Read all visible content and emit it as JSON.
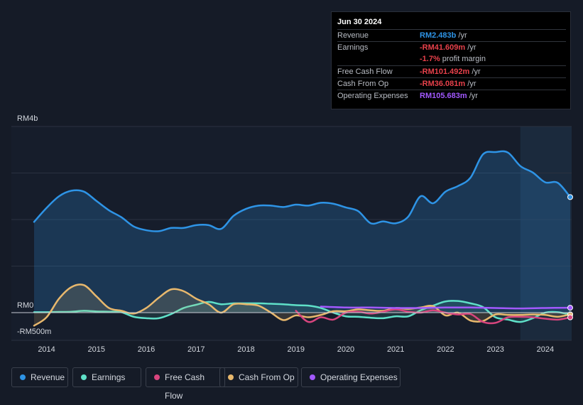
{
  "tooltip": {
    "date": "Jun 30 2024",
    "rows": [
      {
        "label": "Revenue",
        "value": "RM2.483b",
        "unit": " /yr",
        "color": "#2e94e6"
      },
      {
        "label": "Earnings",
        "value": "-RM41.609m",
        "unit": " /yr",
        "color": "#e8414b"
      },
      {
        "label": "",
        "value": "-1.7%",
        "unit": " profit margin",
        "color": "#e8414b"
      },
      {
        "label": "Free Cash Flow",
        "value": "-RM101.492m",
        "unit": " /yr",
        "color": "#e8414b"
      },
      {
        "label": "Cash From Op",
        "value": "-RM36.081m",
        "unit": " /yr",
        "color": "#e8414b"
      },
      {
        "label": "Operating Expenses",
        "value": "RM105.683m",
        "unit": " /yr",
        "color": "#a259ff"
      }
    ]
  },
  "legend": [
    {
      "label": "Revenue",
      "color": "#2e94e6"
    },
    {
      "label": "Earnings",
      "color": "#5fe0c8"
    },
    {
      "label": "Free Cash Flow",
      "color": "#d8457e"
    },
    {
      "label": "Cash From Op",
      "color": "#e8b86d"
    },
    {
      "label": "Operating Expenses",
      "color": "#a259ff"
    }
  ],
  "chart_data": {
    "type": "area",
    "title": "",
    "xlabel": "",
    "ylabel": "",
    "y_unit": "RM millions",
    "y_tick_labels": [
      {
        "value": 4000,
        "label": "RM4b"
      },
      {
        "value": 0,
        "label": "RM0"
      },
      {
        "value": -500,
        "label": "-RM500m"
      }
    ],
    "ylim": [
      -500,
      4000
    ],
    "xlim": [
      2013.75,
      2024.5
    ],
    "x_tick_labels": [
      "2014",
      "2015",
      "2016",
      "2017",
      "2018",
      "2019",
      "2020",
      "2021",
      "2022",
      "2023",
      "2024"
    ],
    "x_tick_values": [
      2014,
      2015,
      2016,
      2017,
      2018,
      2019,
      2020,
      2021,
      2022,
      2023,
      2024
    ],
    "highlight_start": 2023.5,
    "series": [
      {
        "name": "Revenue",
        "color": "#2e94e6",
        "fill": true,
        "x": [
          2013.75,
          2014,
          2014.25,
          2014.5,
          2014.75,
          2015,
          2015.25,
          2015.5,
          2015.75,
          2016,
          2016.25,
          2016.5,
          2016.75,
          2017,
          2017.25,
          2017.5,
          2017.75,
          2018,
          2018.25,
          2018.5,
          2018.75,
          2019,
          2019.25,
          2019.5,
          2019.75,
          2020,
          2020.25,
          2020.5,
          2020.75,
          2021,
          2021.25,
          2021.5,
          2021.75,
          2022,
          2022.25,
          2022.5,
          2022.75,
          2023,
          2023.25,
          2023.5,
          2023.75,
          2024,
          2024.25,
          2024.5
        ],
        "values": [
          1950,
          2250,
          2500,
          2620,
          2600,
          2400,
          2200,
          2050,
          1850,
          1770,
          1750,
          1820,
          1820,
          1880,
          1880,
          1800,
          2080,
          2230,
          2300,
          2300,
          2270,
          2320,
          2300,
          2360,
          2340,
          2260,
          2180,
          1920,
          1960,
          1920,
          2060,
          2500,
          2350,
          2600,
          2720,
          2900,
          3400,
          3450,
          3440,
          3150,
          3010,
          2800,
          2790,
          2483
        ]
      },
      {
        "name": "Earnings",
        "color": "#5fe0c8",
        "fill": true,
        "x": [
          2013.75,
          2014,
          2014.25,
          2014.5,
          2014.75,
          2015,
          2015.25,
          2015.5,
          2015.75,
          2016,
          2016.25,
          2016.5,
          2016.75,
          2017,
          2017.25,
          2017.5,
          2017.75,
          2018,
          2018.25,
          2018.5,
          2018.75,
          2019,
          2019.25,
          2019.5,
          2019.75,
          2020,
          2020.25,
          2020.5,
          2020.75,
          2021,
          2021.25,
          2021.5,
          2021.75,
          2022,
          2022.25,
          2022.5,
          2022.75,
          2023,
          2023.25,
          2023.5,
          2023.75,
          2024,
          2024.25,
          2024.5
        ],
        "values": [
          10,
          10,
          15,
          20,
          40,
          25,
          20,
          10,
          -90,
          -120,
          -120,
          -30,
          100,
          170,
          230,
          180,
          200,
          200,
          200,
          190,
          180,
          160,
          150,
          100,
          0,
          -80,
          -90,
          -110,
          -120,
          -80,
          -80,
          50,
          150,
          240,
          250,
          200,
          120,
          -100,
          -150,
          -200,
          -120,
          0,
          10,
          -41.609
        ]
      },
      {
        "name": "Free Cash Flow",
        "color": "#d8457e",
        "fill": false,
        "x": [
          2019.0,
          2019.25,
          2019.5,
          2019.75,
          2020,
          2020.25,
          2020.5,
          2020.75,
          2021,
          2021.25,
          2021.5,
          2021.75,
          2022,
          2022.25,
          2022.5,
          2022.75,
          2023,
          2023.25,
          2023.5,
          2023.75,
          2024,
          2024.25,
          2024.5
        ],
        "values": [
          40,
          -200,
          -100,
          -150,
          0,
          20,
          -20,
          20,
          70,
          20,
          0,
          50,
          0,
          -40,
          -30,
          -200,
          -220,
          -100,
          -90,
          -100,
          -130,
          -150,
          -101.492
        ]
      },
      {
        "name": "Cash From Op",
        "color": "#e8b86d",
        "fill": true,
        "x": [
          2013.75,
          2014,
          2014.25,
          2014.5,
          2014.75,
          2015,
          2015.25,
          2015.5,
          2015.75,
          2016,
          2016.25,
          2016.5,
          2016.75,
          2017,
          2017.25,
          2017.5,
          2017.75,
          2018,
          2018.25,
          2018.5,
          2018.75,
          2019,
          2019.25,
          2019.5,
          2019.75,
          2020,
          2020.25,
          2020.5,
          2020.75,
          2021,
          2021.25,
          2021.5,
          2021.75,
          2022,
          2022.25,
          2022.5,
          2022.75,
          2023,
          2023.25,
          2023.5,
          2023.75,
          2024,
          2024.25,
          2024.5
        ],
        "values": [
          -280,
          -100,
          300,
          550,
          590,
          350,
          100,
          40,
          -20,
          100,
          320,
          500,
          460,
          300,
          180,
          0,
          180,
          180,
          150,
          0,
          -160,
          -60,
          -100,
          -50,
          30,
          30,
          70,
          50,
          40,
          100,
          80,
          110,
          140,
          -60,
          0,
          -170,
          -180,
          -40,
          -50,
          -50,
          -40,
          -50,
          -90,
          -36.081
        ]
      },
      {
        "name": "Operating Expenses",
        "color": "#a259ff",
        "fill": false,
        "x": [
          2019.5,
          2020,
          2020.5,
          2021,
          2021.5,
          2022,
          2022.5,
          2023,
          2023.5,
          2024,
          2024.5
        ],
        "values": [
          130,
          110,
          110,
          100,
          100,
          110,
          110,
          100,
          90,
          100,
          105.683
        ]
      }
    ]
  }
}
